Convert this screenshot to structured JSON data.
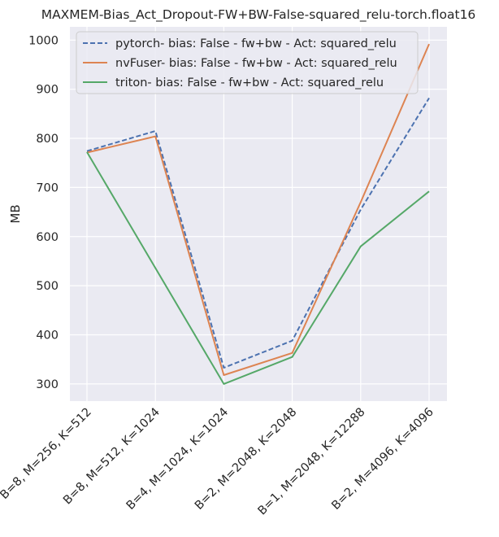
{
  "chart_data": {
    "type": "line",
    "title": "MAXMEM-Bias_Act_Dropout-FW+BW-False-squared_relu-torch.float16",
    "xlabel": "",
    "ylabel": "MB",
    "categories": [
      "B=8, M=256, K=512",
      "B=8, M=512, K=1024",
      "B=4, M=1024, K=1024",
      "B=2, M=2048, K=2048",
      "B=1, M=2048, K=12288",
      "B=2, M=4096, K=4096"
    ],
    "ylim": [
      265,
      1027
    ],
    "yticks": [
      300,
      400,
      500,
      600,
      700,
      800,
      900,
      1000
    ],
    "grid": true,
    "legend_position": "top",
    "series": [
      {
        "name": "pytorch- bias: False - fw+bw - Act: squared_relu",
        "values": [
          774,
          815,
          333,
          388,
          655,
          882
        ],
        "color": "#4c72b0",
        "style": "dashed"
      },
      {
        "name": "nvFuser- bias: False - fw+bw - Act: squared_relu",
        "values": [
          771,
          804,
          318,
          363,
          670,
          992
        ],
        "color": "#dd8452",
        "style": "solid"
      },
      {
        "name": "triton- bias: False - fw+bw - Act: squared_relu",
        "values": [
          772,
          null,
          300,
          355,
          580,
          692
        ],
        "color": "#55a868",
        "style": "solid"
      }
    ]
  }
}
